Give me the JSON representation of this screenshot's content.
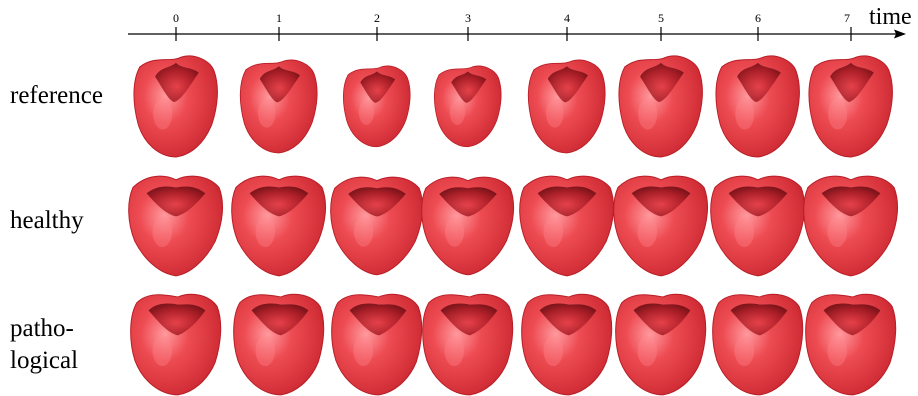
{
  "axis": {
    "title": "time",
    "ticks": [
      "0",
      "1",
      "2",
      "3",
      "4",
      "5",
      "6",
      "7"
    ]
  },
  "rows": [
    {
      "label": "reference",
      "shape": "reference",
      "scales": [
        1.0,
        0.92,
        0.8,
        0.8,
        0.92,
        1.0,
        1.0,
        1.0
      ]
    },
    {
      "label": "healthy",
      "shape": "healthy",
      "scales": [
        1.0,
        1.0,
        0.98,
        0.98,
        1.0,
        1.0,
        1.0,
        1.0
      ]
    },
    {
      "label_lines": [
        "patho-",
        "logical"
      ],
      "shape": "pathological",
      "scales": [
        1.0,
        1.0,
        1.0,
        1.0,
        1.0,
        1.0,
        1.0,
        1.0
      ]
    }
  ],
  "colors": {
    "heart_base": "#e8474d",
    "heart_dark": "#b81d26",
    "heart_highlight": "#ff8a8f",
    "cavity": "#7a0f16",
    "axis": "#000000"
  },
  "icons": {
    "heart": "heart-ventricle-icon",
    "arrow": "arrow-right-icon"
  }
}
